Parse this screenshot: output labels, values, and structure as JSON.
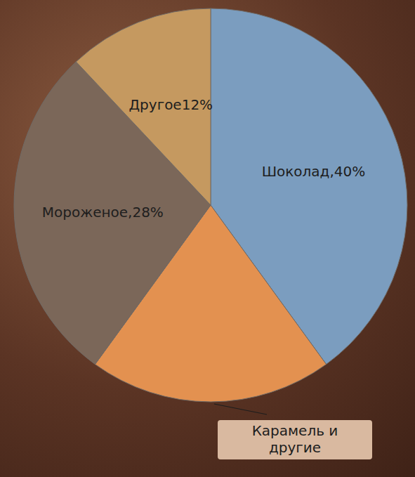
{
  "chart_data": {
    "type": "pie",
    "categories": [
      "Шоколад",
      "Карамель и другие",
      "Мороженое",
      "Другое"
    ],
    "values": [
      40,
      20,
      28,
      12
    ],
    "value_labels": [
      "Шоколад,40%",
      null,
      "Мороженое,28%",
      "Другое12%"
    ],
    "colors": [
      "#7b9dbf",
      "#e39150",
      "#7b6759",
      "#c59960"
    ],
    "data_labels": true
  }
}
